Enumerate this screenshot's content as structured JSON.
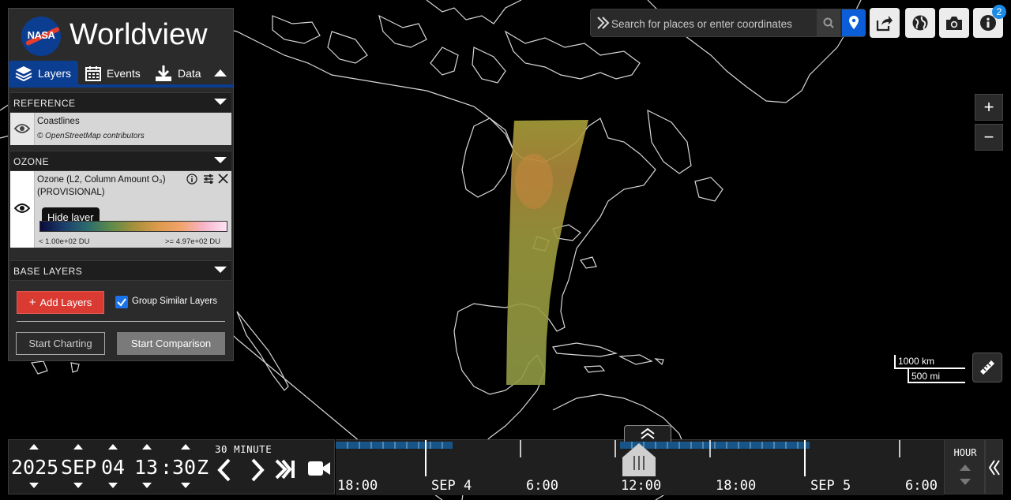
{
  "app": {
    "title": "Worldview"
  },
  "tabs": [
    {
      "label": "Layers",
      "icon": "layers-icon",
      "active": true
    },
    {
      "label": "Events",
      "icon": "calendar-icon"
    },
    {
      "label": "Data",
      "icon": "download-icon"
    }
  ],
  "sections": {
    "reference": {
      "title": "REFERENCE"
    },
    "ozone": {
      "title": "OZONE"
    },
    "base": {
      "title": "BASE LAYERS"
    }
  },
  "layers": {
    "coastlines": {
      "name": "Coastlines",
      "attribution": "© OpenStreetMap contributors"
    },
    "ozone": {
      "name": "Ozone (L2, Column Amount O₃)",
      "name_line2": "(PROVISIONAL)",
      "legend_min": "< 1.00e+02 DU",
      "legend_max": ">= 4.97e+02 DU",
      "tooltip": "Hide layer"
    }
  },
  "actions": {
    "add_layers": "Add Layers",
    "group_similar": "Group Similar Layers",
    "group_similar_checked": true,
    "start_charting": "Start Charting",
    "start_comparison": "Start Comparison"
  },
  "search": {
    "placeholder": "Search for places or enter coordinates"
  },
  "toolbar": {
    "info_badge": "2"
  },
  "zoom": {
    "in": "+",
    "out": "−"
  },
  "scale": {
    "km": "1000 km",
    "mi": "500 mi"
  },
  "date": {
    "year": "2025",
    "month": "SEP",
    "day": "04",
    "hour": "13",
    "sep": ":",
    "minute": "30",
    "zone": "Z",
    "interval": "30 MINUTE"
  },
  "timeline": {
    "labels": [
      "18:00",
      "SEP 4",
      "6:00",
      "12:00",
      "18:00",
      "SEP 5",
      "6:00"
    ],
    "zoom_level": "HOUR"
  },
  "colors": {
    "accent": "#0b3d91",
    "add_button": "#d93a32",
    "ozone_swath": "#9a9a3a"
  }
}
